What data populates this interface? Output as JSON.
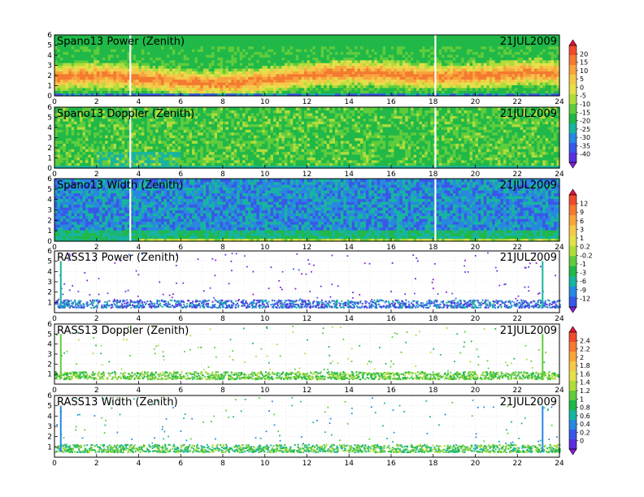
{
  "chart_data": [
    {
      "type": "heatmap",
      "title": "Spano13 Power (Zenith)",
      "date_label": "21JUL2009",
      "mode": "fill",
      "profile": "power",
      "colorbar": 0,
      "x_ticks": [
        "0",
        "2",
        "4",
        "6",
        "8",
        "10",
        "12",
        "14",
        "16",
        "18",
        "20",
        "22",
        "24"
      ],
      "y_ticks": [
        "0",
        "1",
        "2",
        "3",
        "4",
        "5",
        "6"
      ],
      "xlim": [
        0,
        24
      ],
      "ylim": [
        0,
        6
      ],
      "grid": true,
      "gaps_hours": [
        3.6,
        18.1
      ]
    },
    {
      "type": "heatmap",
      "title": "Spano13 Doppler (Zenith)",
      "date_label": "21JUL2009",
      "mode": "fill",
      "profile": "doppler",
      "colorbar": 0,
      "x_ticks": [
        "0",
        "2",
        "4",
        "6",
        "8",
        "10",
        "12",
        "14",
        "16",
        "18",
        "20",
        "22",
        "24"
      ],
      "y_ticks": [
        "0",
        "1",
        "2",
        "3",
        "4",
        "5",
        "6"
      ],
      "xlim": [
        0,
        24
      ],
      "ylim": [
        0,
        6
      ],
      "grid": true,
      "gaps_hours": [
        3.6,
        18.1
      ]
    },
    {
      "type": "heatmap",
      "title": "Spano13 Width (Zenith)",
      "date_label": "21JUL2009",
      "mode": "fill",
      "profile": "width",
      "colorbar": 1,
      "x_ticks": [
        "0",
        "2",
        "4",
        "6",
        "8",
        "10",
        "12",
        "14",
        "16",
        "18",
        "20",
        "22",
        "24"
      ],
      "y_ticks": [
        "0",
        "1",
        "2",
        "3",
        "4",
        "5",
        "6"
      ],
      "xlim": [
        0,
        24
      ],
      "ylim": [
        0,
        6
      ],
      "grid": true,
      "gaps_hours": [
        3.6,
        18.1
      ]
    },
    {
      "type": "scatter",
      "title": "RASS13 Power (Zenith)",
      "date_label": "21JUL2009",
      "mode": "sparse",
      "profile": "rasspower",
      "colorbar": 1,
      "x_ticks": [
        "0",
        "2",
        "4",
        "6",
        "8",
        "10",
        "12",
        "14",
        "16",
        "18",
        "20",
        "22",
        "24"
      ],
      "y_ticks": [
        "1",
        "2",
        "3",
        "4",
        "5",
        "6"
      ],
      "xlim": [
        0,
        24
      ],
      "ylim": [
        0,
        6
      ],
      "grid": true,
      "spikes_hours": [
        0.3,
        23.2
      ]
    },
    {
      "type": "scatter",
      "title": "RASS13 Doppler (Zenith)",
      "date_label": "21JUL2009",
      "mode": "sparse",
      "profile": "rassdoppler",
      "colorbar": 2,
      "x_ticks": [
        "0",
        "2",
        "4",
        "6",
        "8",
        "10",
        "12",
        "14",
        "16",
        "18",
        "20",
        "22",
        "24"
      ],
      "y_ticks": [
        "1",
        "2",
        "3",
        "4",
        "5",
        "6"
      ],
      "xlim": [
        0,
        24
      ],
      "ylim": [
        0,
        6
      ],
      "grid": true,
      "spikes_hours": [
        0.3,
        23.2
      ]
    },
    {
      "type": "scatter",
      "title": "RASS13 Width (Zenith)",
      "date_label": "21JUL2009",
      "mode": "sparse",
      "profile": "rasswidth",
      "colorbar": 2,
      "x_ticks": [
        "0",
        "2",
        "4",
        "6",
        "8",
        "10",
        "12",
        "14",
        "16",
        "18",
        "20",
        "22",
        "24"
      ],
      "y_ticks": [
        "1",
        "2",
        "3",
        "4",
        "5",
        "6"
      ],
      "xlim": [
        0,
        24
      ],
      "ylim": [
        0,
        6
      ],
      "grid": true,
      "spikes_hours": [
        0.3,
        23.2
      ]
    }
  ],
  "colorbars": [
    {
      "labels": [
        "20",
        "15",
        "10",
        "5",
        "0",
        "-5",
        "-10",
        "-15",
        "-20",
        "-25",
        "-30",
        "-35",
        "-40"
      ],
      "colors": [
        "#e8103c",
        "#f04a2c",
        "#f47a30",
        "#f7a43c",
        "#f5c84a",
        "#e4e04a",
        "#b0dc3c",
        "#60cc3c",
        "#20b848",
        "#18b4a0",
        "#2888e0",
        "#3858e8",
        "#5a2ee0",
        "#8a1cd8"
      ]
    },
    {
      "labels": [
        "12",
        "9",
        "6",
        "3",
        "1",
        "0.2",
        "-0.2",
        "-1",
        "-3",
        "-6",
        "-9",
        "-12"
      ],
      "colors": [
        "#e8103c",
        "#f04a2c",
        "#f47a30",
        "#f7a43c",
        "#f5c84a",
        "#e4e04a",
        "#b0dc3c",
        "#60cc3c",
        "#20b848",
        "#18b4a0",
        "#2888e0",
        "#3858e8",
        "#8a1cd8"
      ]
    },
    {
      "labels": [
        "2.4",
        "2.2",
        "2",
        "1.8",
        "1.6",
        "1.4",
        "1.2",
        "1",
        "0.8",
        "0.6",
        "0.4",
        "0.2",
        "0"
      ],
      "colors": [
        "#e8103c",
        "#f04a2c",
        "#f47a30",
        "#f7a43c",
        "#f5c84a",
        "#e4e04a",
        "#b0dc3c",
        "#60cc3c",
        "#20b848",
        "#18b4a0",
        "#2888e0",
        "#3858e8",
        "#5a2ee0",
        "#8a1cd8"
      ]
    }
  ]
}
